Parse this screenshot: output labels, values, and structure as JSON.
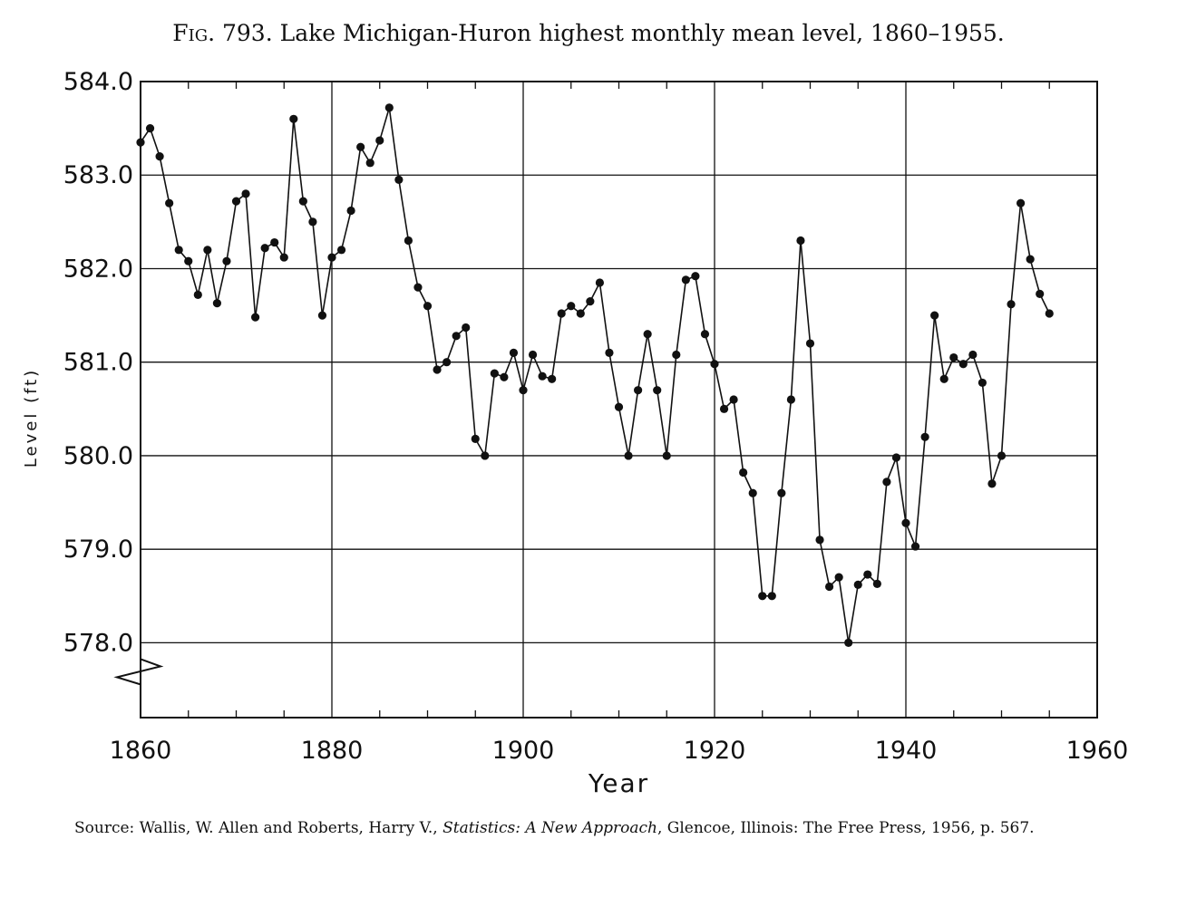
{
  "title": {
    "prefix": "Fig. 793.",
    "text": "Lake Michigan-Huron highest monthly mean level, 1860–1955."
  },
  "source": {
    "lead": "Source: Wallis, W. Allen and Roberts, Harry V., ",
    "book": "Statistics: A New Approach",
    "tail": ", Glencoe, Illinois: The Free Press, 1956, p. 567."
  },
  "chart_data": {
    "type": "line",
    "xlabel": "Year",
    "ylabel": "Level (ft)",
    "xlim": [
      1860,
      1960
    ],
    "ylim": [
      577.2,
      584.0
    ],
    "axis_break_below": 578.0,
    "xticks": [
      1860,
      1880,
      1900,
      1920,
      1940,
      1960
    ],
    "xtick_labels": [
      "1860",
      "1880",
      "1900",
      "1920",
      "1940",
      "1960"
    ],
    "yticks": [
      578,
      579,
      580,
      581,
      582,
      583,
      584
    ],
    "ytick_labels": [
      "578.0",
      "579.0",
      "580.0",
      "581.0",
      "582.0",
      "583.0",
      "584.0"
    ],
    "grid": true,
    "gap_between_years": [
      1895,
      1896
    ],
    "color": "#111111",
    "x": [
      1860,
      1861,
      1862,
      1863,
      1864,
      1865,
      1866,
      1867,
      1868,
      1869,
      1870,
      1871,
      1872,
      1873,
      1874,
      1875,
      1876,
      1877,
      1878,
      1879,
      1880,
      1881,
      1882,
      1883,
      1884,
      1885,
      1886,
      1887,
      1888,
      1889,
      1890,
      1891,
      1892,
      1893,
      1894,
      1895,
      1896,
      1897,
      1898,
      1899,
      1900,
      1901,
      1902,
      1903,
      1904,
      1905,
      1906,
      1907,
      1908,
      1909,
      1910,
      1911,
      1912,
      1913,
      1914,
      1915,
      1916,
      1917,
      1918,
      1919,
      1920,
      1921,
      1922,
      1923,
      1924,
      1925,
      1926,
      1927,
      1928,
      1929,
      1930,
      1931,
      1932,
      1933,
      1934,
      1935,
      1936,
      1937,
      1938,
      1939,
      1940,
      1941,
      1942,
      1943,
      1944,
      1945,
      1946,
      1947,
      1948,
      1949,
      1950,
      1951,
      1952,
      1953,
      1954,
      1955
    ],
    "y": [
      583.35,
      583.5,
      583.2,
      582.7,
      582.2,
      582.08,
      581.72,
      582.2,
      581.63,
      582.08,
      582.72,
      582.8,
      581.48,
      582.22,
      582.28,
      582.12,
      583.6,
      582.72,
      582.5,
      581.5,
      582.12,
      582.2,
      582.62,
      583.3,
      583.13,
      583.37,
      583.72,
      582.95,
      582.3,
      581.8,
      581.6,
      580.92,
      581.0,
      581.28,
      581.37,
      580.18,
      580.0,
      580.88,
      580.84,
      581.1,
      580.7,
      581.08,
      580.85,
      580.82,
      581.52,
      581.6,
      581.52,
      581.65,
      581.85,
      581.1,
      580.52,
      580.0,
      580.7,
      581.3,
      580.7,
      580.0,
      581.08,
      581.88,
      581.92,
      581.3,
      580.98,
      580.5,
      580.6,
      579.82,
      579.6,
      578.5,
      578.5,
      579.6,
      580.6,
      582.3,
      581.2,
      579.1,
      578.6,
      578.7,
      578.0,
      578.62,
      578.73,
      578.63,
      579.72,
      579.98,
      579.28,
      579.03,
      580.2,
      581.5,
      580.82,
      581.05,
      580.98,
      581.08,
      580.78,
      579.7,
      580.0,
      581.62,
      582.7,
      582.1,
      581.73,
      581.52
    ]
  }
}
